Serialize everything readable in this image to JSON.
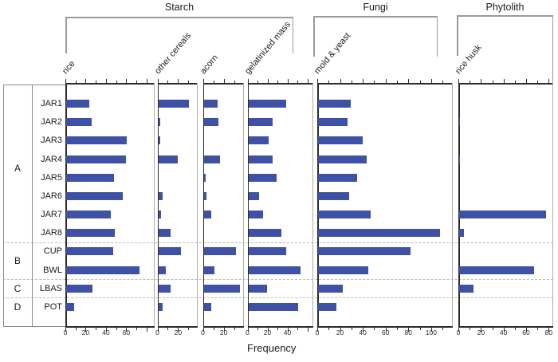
{
  "chart_data": {
    "type": "bar",
    "orientation": "horizontal",
    "title": "",
    "xlabel": "Frequency",
    "grid": false,
    "bar_color": "#3f51a5",
    "rows": [
      "JAR1",
      "JAR2",
      "JAR3",
      "JAR4",
      "JAR5",
      "JAR6",
      "JAR7",
      "JAR8",
      "CUP",
      "BWL",
      "LBAS",
      "POT"
    ],
    "row_groups": [
      {
        "label": "A",
        "first_row": "JAR1",
        "last_row": "JAR8"
      },
      {
        "label": "B",
        "first_row": "CUP",
        "last_row": "BWL"
      },
      {
        "label": "C",
        "first_row": "LBAS",
        "last_row": "LBAS"
      },
      {
        "label": "D",
        "first_row": "POT",
        "last_row": "POT"
      }
    ],
    "category_groups": [
      {
        "label": "Starch",
        "panel_indexes": [
          0,
          1,
          2,
          3
        ]
      },
      {
        "label": "Fungi",
        "panel_indexes": [
          4
        ]
      },
      {
        "label": "Phytolith",
        "panel_indexes": [
          5
        ]
      }
    ],
    "panels": [
      {
        "label": "rice",
        "group": "Starch",
        "xlim": [
          0,
          88
        ],
        "tick_interval": 10,
        "label_ticks": [
          0,
          20,
          40,
          60
        ],
        "values": [
          23,
          25,
          60,
          59,
          47,
          56,
          44,
          48,
          46,
          72,
          26,
          8
        ]
      },
      {
        "label": "other cereals",
        "group": "Starch",
        "xlim": [
          0,
          39
        ],
        "tick_interval": 10,
        "label_ticks": [
          0,
          20
        ],
        "values": [
          30,
          2,
          2,
          19,
          0,
          4,
          3,
          12,
          22,
          7,
          12,
          4
        ]
      },
      {
        "label": "acorn",
        "group": "Starch",
        "xlim": [
          0,
          39
        ],
        "tick_interval": 10,
        "label_ticks": [
          0,
          20
        ],
        "values": [
          13,
          14,
          0,
          16,
          2,
          3,
          7,
          0,
          31,
          10,
          35,
          7
        ]
      },
      {
        "label": "gelatinized mass",
        "group": "Starch",
        "xlim": [
          0,
          66
        ],
        "tick_interval": 10,
        "label_ticks": [
          0,
          20,
          40
        ],
        "values": [
          38,
          24,
          20,
          24,
          28,
          11,
          15,
          33,
          38,
          52,
          19,
          50
        ]
      },
      {
        "label": "mold & yeast",
        "group": "Fungi",
        "xlim": [
          0,
          119
        ],
        "tick_interval": 10,
        "label_ticks": [
          0,
          20,
          40,
          60,
          80,
          100
        ],
        "values": [
          29,
          26,
          39,
          43,
          34,
          27,
          46,
          107,
          81,
          44,
          22,
          16
        ]
      },
      {
        "label": "rice husk",
        "group": "Phytolith",
        "xlim": [
          0,
          84
        ],
        "tick_interval": 10,
        "label_ticks": [
          0,
          20,
          40,
          60,
          80
        ],
        "values": [
          0,
          1,
          0,
          1,
          0,
          0,
          77,
          4,
          0,
          66,
          13,
          0
        ]
      }
    ]
  }
}
